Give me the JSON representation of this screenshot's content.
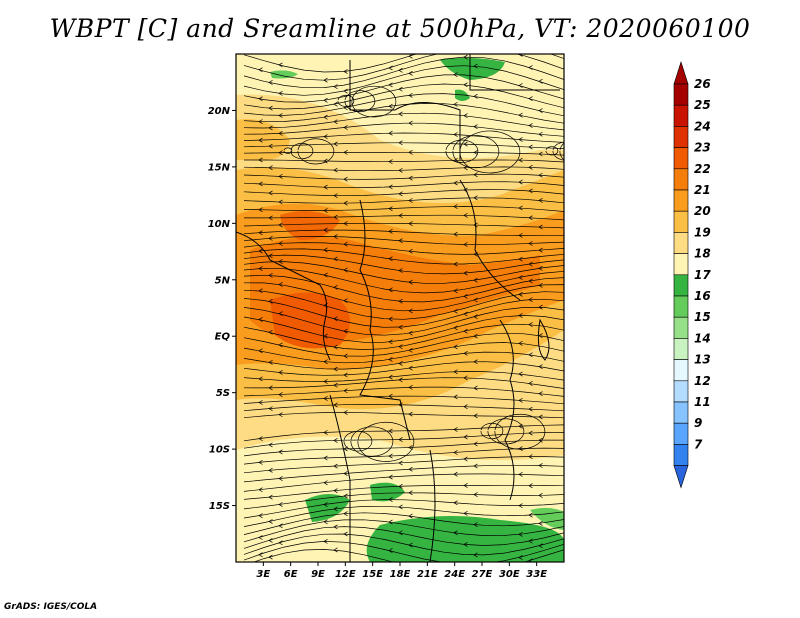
{
  "title": "WBPT [C] and Sreamline at 500hPa, VT: 2020060100",
  "credit": "GrADS: IGES/COLA",
  "map": {
    "lon_range": [
      0,
      36
    ],
    "lat_range": [
      -20,
      25
    ],
    "lon_ticks": [
      "3E",
      "6E",
      "9E",
      "12E",
      "15E",
      "18E",
      "21E",
      "24E",
      "27E",
      "30E",
      "33E"
    ],
    "lat_ticks": [
      "20N",
      "15N",
      "10N",
      "5N",
      "EQ",
      "5S",
      "10S",
      "15S"
    ],
    "field": "Wet-bulb potential temperature",
    "units": "C",
    "level": "500hPa",
    "overlay": "streamlines"
  },
  "colorbar": {
    "labels": [
      "26",
      "25",
      "24",
      "23",
      "22",
      "21",
      "20",
      "19",
      "18",
      "17",
      "16",
      "15",
      "14",
      "13",
      "12",
      "11",
      "9",
      "7"
    ],
    "colors": [
      "#a50000",
      "#c81400",
      "#e03200",
      "#f05a00",
      "#f57d0a",
      "#fa9d1e",
      "#fbbf46",
      "#fddc84",
      "#fff4b4",
      "#36b441",
      "#63cc5a",
      "#96e08a",
      "#c8f2c0",
      "#e6f8ff",
      "#b4dcff",
      "#87c3ff",
      "#5aa5ff",
      "#3282f0"
    ],
    "top_color": "#a50000",
    "bottom_color": "#2864dc"
  }
}
